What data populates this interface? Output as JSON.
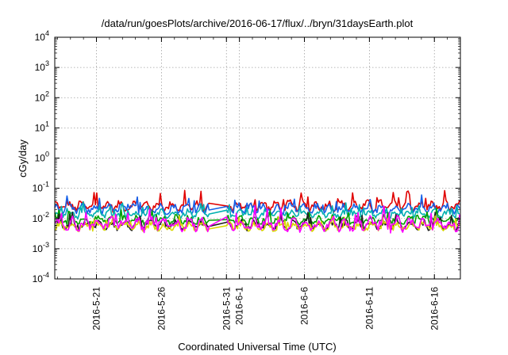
{
  "chart_data": {
    "type": "line",
    "title": "/data/run/goesPlots/archive/2016-06-17/flux/../bryn/31daysEarth.plot",
    "xlabel": "Coordinated Universal Time (UTC)",
    "ylabel": "cGy/day",
    "yscale": "log",
    "ylim": [
      0.0001,
      10000
    ],
    "xlim": [
      "2016-05-17T19:00",
      "2016-06-18T00:00"
    ],
    "grid": true,
    "y_ticks": [
      {
        "value": 0.0001,
        "base": "10",
        "exp": "-4"
      },
      {
        "value": 0.001,
        "base": "10",
        "exp": "-3"
      },
      {
        "value": 0.01,
        "base": "10",
        "exp": "-2"
      },
      {
        "value": 0.1,
        "base": "10",
        "exp": "-1"
      },
      {
        "value": 1,
        "base": "10",
        "exp": "0"
      },
      {
        "value": 10,
        "base": "10",
        "exp": "1"
      },
      {
        "value": 100,
        "base": "10",
        "exp": "2"
      },
      {
        "value": 1000,
        "base": "10",
        "exp": "3"
      },
      {
        "value": 10000,
        "base": "10",
        "exp": "4"
      }
    ],
    "x_ticks": [
      {
        "date": "2016-05-21",
        "label": "2016-5-21"
      },
      {
        "date": "2016-05-26",
        "label": "2016-5-26"
      },
      {
        "date": "2016-05-31",
        "label": "2016-5-31"
      },
      {
        "date": "2016-06-01",
        "label": "2016-6-1"
      },
      {
        "date": "2016-06-06",
        "label": "2016-6-6"
      },
      {
        "date": "2016-06-11",
        "label": "2016-6-11"
      },
      {
        "date": "2016-06-16",
        "label": "2016-6-16"
      }
    ],
    "gap": [
      "2016-05-29T18:00",
      "2016-05-31T00:00"
    ],
    "series": [
      {
        "color": "#e00000",
        "level": 0.026,
        "spread": 0.22,
        "spikes": 0.35
      },
      {
        "color": "#1560e8",
        "level": 0.021,
        "spread": 0.2,
        "spikes": 0.3
      },
      {
        "color": "#00b0b0",
        "level": 0.014,
        "spread": 0.18,
        "spikes": 0.25
      },
      {
        "color": "#00a000",
        "level": 0.009,
        "spread": 0.18,
        "spikes": 0.25
      },
      {
        "color": "#202020",
        "level": 0.006,
        "spread": 0.2,
        "spikes": 0.25
      },
      {
        "color": "#d8d800",
        "level": 0.0055,
        "spread": 0.2,
        "spikes": 0.25
      },
      {
        "color": "#ff00ff",
        "level": 0.0065,
        "spread": 0.3,
        "spikes": 0.35
      }
    ]
  }
}
